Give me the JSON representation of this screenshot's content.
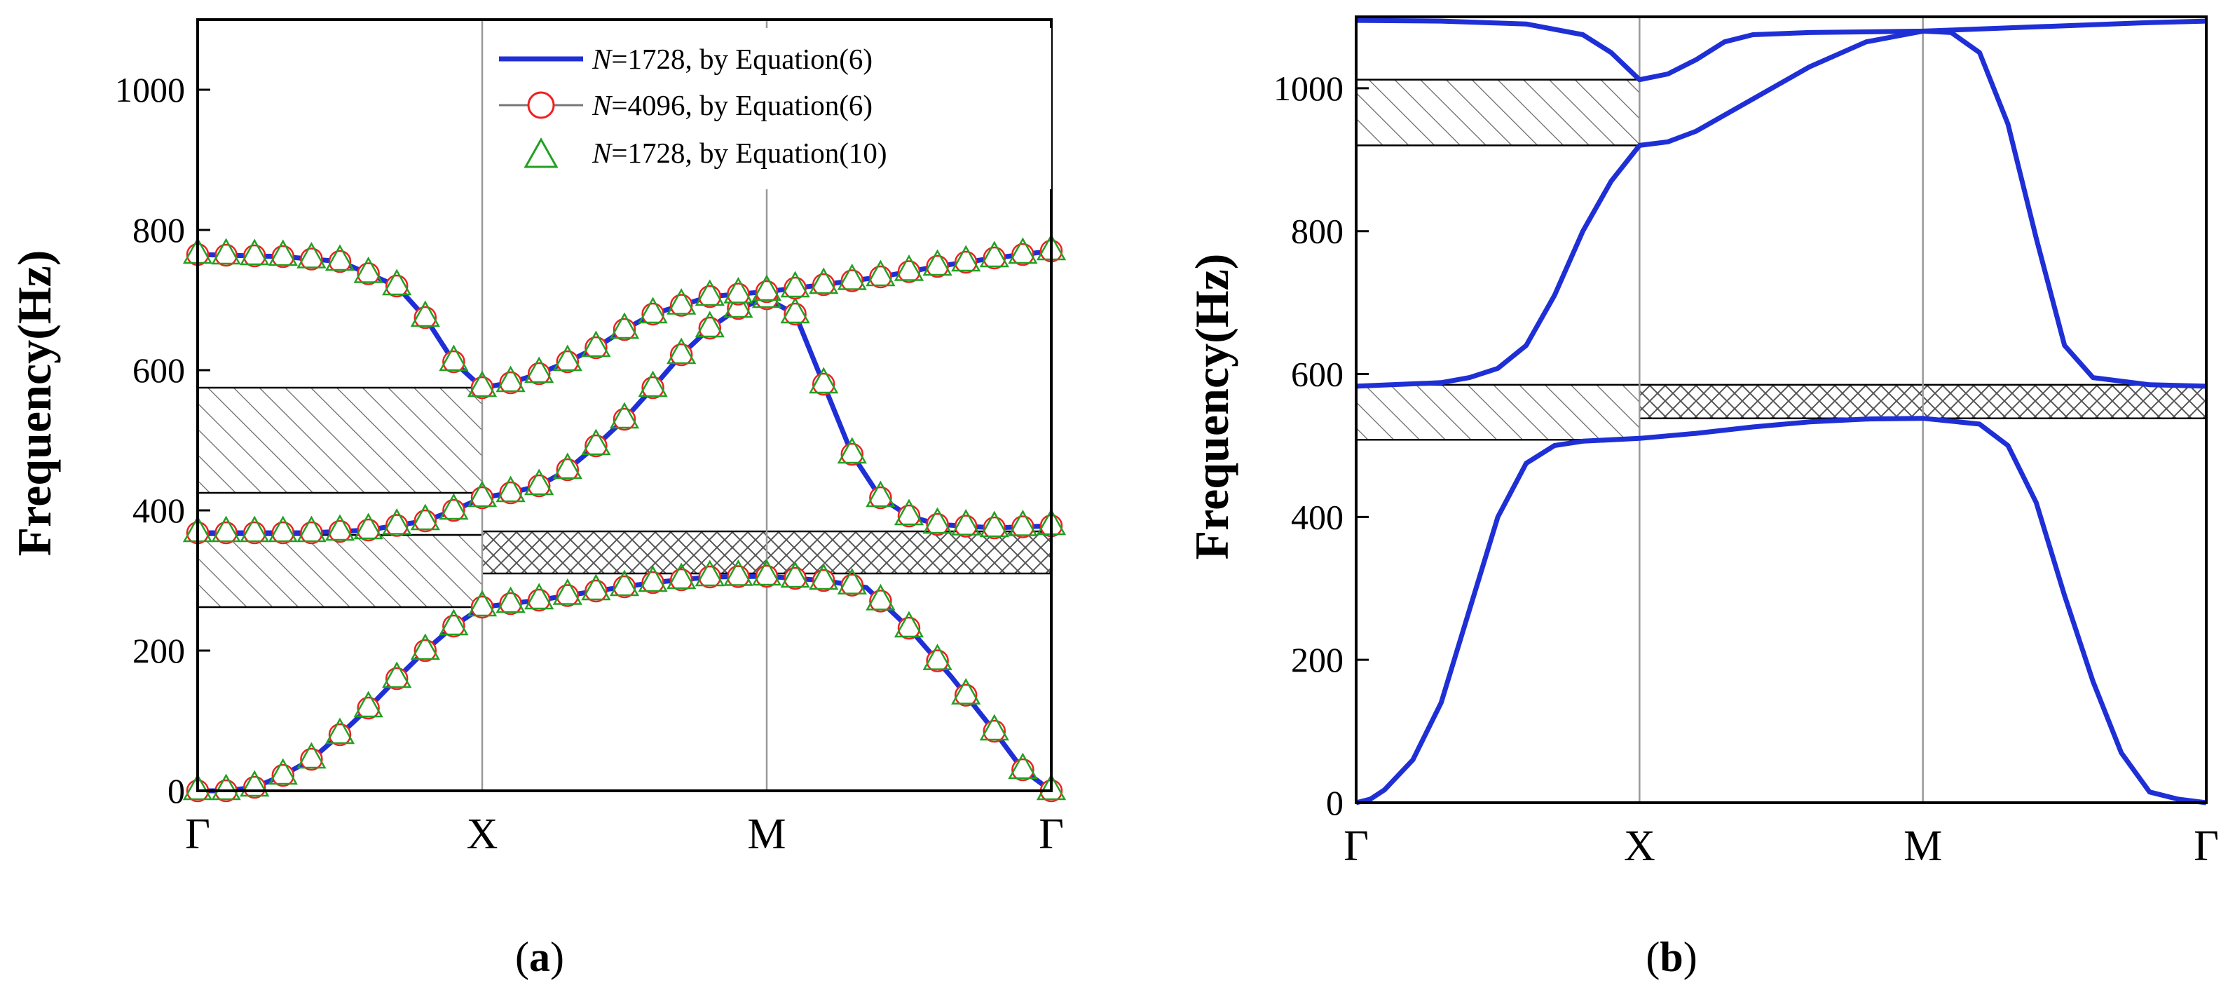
{
  "chart_data": [
    {
      "type": "line",
      "panel_label": "a",
      "ylabel": "Frequency(Hz)",
      "xlabel": "",
      "ylim": [
        0,
        1100
      ],
      "yticks": [
        0,
        200,
        400,
        600,
        800,
        1000
      ],
      "xpoints": [
        {
          "label": "Γ",
          "pos": 0
        },
        {
          "label": "X",
          "pos": 1
        },
        {
          "label": "M",
          "pos": 2
        },
        {
          "label": "Γ",
          "pos": 3
        }
      ],
      "legend": [
        {
          "name": "N",
          "suffix": "=1728, by Equation(6)",
          "style": "line",
          "color": "#1f2fd6"
        },
        {
          "name": "N",
          "suffix": "=4096, by Equation(6)",
          "style": "circle",
          "color": "#ee2020"
        },
        {
          "name": "N",
          "suffix": "=1728, by Equation(10)",
          "style": "triangle",
          "color": "#22a022"
        }
      ],
      "bands": [
        {
          "from": 0,
          "to": 1,
          "lo": 425,
          "hi": 575,
          "pattern": "hatch"
        },
        {
          "from": 0,
          "to": 1,
          "lo": 262,
          "hi": 365,
          "pattern": "hatch"
        },
        {
          "from": 1,
          "to": 3,
          "lo": 310,
          "hi": 370,
          "pattern": "cross"
        }
      ],
      "series": [
        {
          "name": "band-1",
          "points": [
            [
              0,
              0
            ],
            [
              0.1,
              0
            ],
            [
              0.2,
              5
            ],
            [
              0.3,
              22
            ],
            [
              0.4,
              45
            ],
            [
              0.5,
              80
            ],
            [
              0.6,
              118
            ],
            [
              0.7,
              160
            ],
            [
              0.8,
              200
            ],
            [
              0.9,
              235
            ],
            [
              1,
              262
            ],
            [
              1.2,
              272
            ],
            [
              1.4,
              285
            ],
            [
              1.6,
              297
            ],
            [
              1.8,
              305
            ],
            [
              2,
              306
            ],
            [
              2.2,
              300
            ],
            [
              2.35,
              290
            ],
            [
              2.5,
              232
            ],
            [
              2.65,
              162
            ],
            [
              2.8,
              85
            ],
            [
              2.9,
              30
            ],
            [
              3,
              0
            ]
          ]
        },
        {
          "name": "band-2",
          "points": [
            [
              0,
              368
            ],
            [
              0.2,
              368
            ],
            [
              0.4,
              368
            ],
            [
              0.6,
              372
            ],
            [
              0.8,
              385
            ],
            [
              0.9,
              400
            ],
            [
              1,
              418
            ],
            [
              1.1,
              425
            ],
            [
              1.2,
              435
            ],
            [
              1.3,
              458
            ],
            [
              1.4,
              492
            ],
            [
              1.5,
              530
            ],
            [
              1.6,
              575
            ],
            [
              1.7,
              622
            ],
            [
              1.8,
              660
            ],
            [
              1.9,
              688
            ],
            [
              2,
              702
            ],
            [
              2.1,
              680
            ],
            [
              2.2,
              580
            ],
            [
              2.3,
              480
            ],
            [
              2.4,
              418
            ],
            [
              2.5,
              392
            ],
            [
              2.6,
              380
            ],
            [
              2.8,
              375
            ],
            [
              3,
              378
            ]
          ]
        },
        {
          "name": "band-3",
          "points": [
            [
              0,
              765
            ],
            [
              0.3,
              762
            ],
            [
              0.5,
              755
            ],
            [
              0.7,
              720
            ],
            [
              0.8,
              675
            ],
            [
              0.9,
              612
            ],
            [
              1,
              575
            ],
            [
              1.1,
              582
            ],
            [
              1.2,
              595
            ],
            [
              1.3,
              612
            ],
            [
              1.4,
              632
            ],
            [
              1.5,
              658
            ],
            [
              1.6,
              680
            ],
            [
              1.8,
              705
            ],
            [
              2,
              712
            ],
            [
              2.2,
              722
            ],
            [
              2.4,
              733
            ],
            [
              2.6,
              748
            ],
            [
              2.8,
              760
            ],
            [
              3,
              770
            ]
          ]
        }
      ]
    },
    {
      "type": "line",
      "panel_label": "b",
      "ylabel": "Frequency(Hz)",
      "xlabel": "",
      "ylim": [
        0,
        1100
      ],
      "yticks": [
        0,
        200,
        400,
        600,
        800,
        1000
      ],
      "xpoints": [
        {
          "label": "Γ",
          "pos": 0
        },
        {
          "label": "X",
          "pos": 1
        },
        {
          "label": "M",
          "pos": 2
        },
        {
          "label": "Γ",
          "pos": 3
        }
      ],
      "bands": [
        {
          "from": 0,
          "to": 1,
          "lo": 920,
          "hi": 1012,
          "pattern": "hatch"
        },
        {
          "from": 0,
          "to": 1,
          "lo": 508,
          "hi": 585,
          "pattern": "hatch"
        },
        {
          "from": 1,
          "to": 3,
          "lo": 538,
          "hi": 585,
          "pattern": "cross"
        }
      ],
      "series": [
        {
          "name": "band-1",
          "points": [
            [
              0,
              0
            ],
            [
              0.05,
              5
            ],
            [
              0.1,
              18
            ],
            [
              0.2,
              60
            ],
            [
              0.3,
              140
            ],
            [
              0.4,
              270
            ],
            [
              0.5,
              400
            ],
            [
              0.6,
              475
            ],
            [
              0.7,
              500
            ],
            [
              0.8,
              506
            ],
            [
              1,
              510
            ],
            [
              1.2,
              517
            ],
            [
              1.4,
              526
            ],
            [
              1.6,
              533
            ],
            [
              1.8,
              537
            ],
            [
              2,
              538
            ],
            [
              2.2,
              530
            ],
            [
              2.3,
              500
            ],
            [
              2.4,
              420
            ],
            [
              2.5,
              290
            ],
            [
              2.6,
              170
            ],
            [
              2.7,
              70
            ],
            [
              2.8,
              15
            ],
            [
              2.9,
              5
            ],
            [
              3,
              0
            ]
          ]
        },
        {
          "name": "band-2",
          "points": [
            [
              0,
              583
            ],
            [
              0.3,
              588
            ],
            [
              0.4,
              595
            ],
            [
              0.5,
              608
            ],
            [
              0.6,
              640
            ],
            [
              0.7,
              710
            ],
            [
              0.8,
              800
            ],
            [
              0.9,
              870
            ],
            [
              1,
              920
            ],
            [
              1.1,
              925
            ],
            [
              1.2,
              940
            ],
            [
              1.4,
              985
            ],
            [
              1.6,
              1030
            ],
            [
              1.8,
              1065
            ],
            [
              2,
              1080
            ],
            [
              2.1,
              1078
            ],
            [
              2.2,
              1050
            ],
            [
              2.3,
              950
            ],
            [
              2.4,
              790
            ],
            [
              2.5,
              640
            ],
            [
              2.6,
              595
            ],
            [
              2.8,
              585
            ],
            [
              3,
              583
            ]
          ]
        },
        {
          "name": "band-3",
          "points": [
            [
              0,
              1095
            ],
            [
              0.3,
              1094
            ],
            [
              0.6,
              1090
            ],
            [
              0.8,
              1075
            ],
            [
              0.9,
              1050
            ],
            [
              1,
              1012
            ],
            [
              1.1,
              1020
            ],
            [
              1.2,
              1040
            ],
            [
              1.3,
              1065
            ],
            [
              1.4,
              1075
            ],
            [
              1.6,
              1078
            ],
            [
              2,
              1080
            ],
            [
              2.4,
              1086
            ],
            [
              2.8,
              1092
            ],
            [
              3,
              1094
            ]
          ]
        }
      ]
    }
  ]
}
